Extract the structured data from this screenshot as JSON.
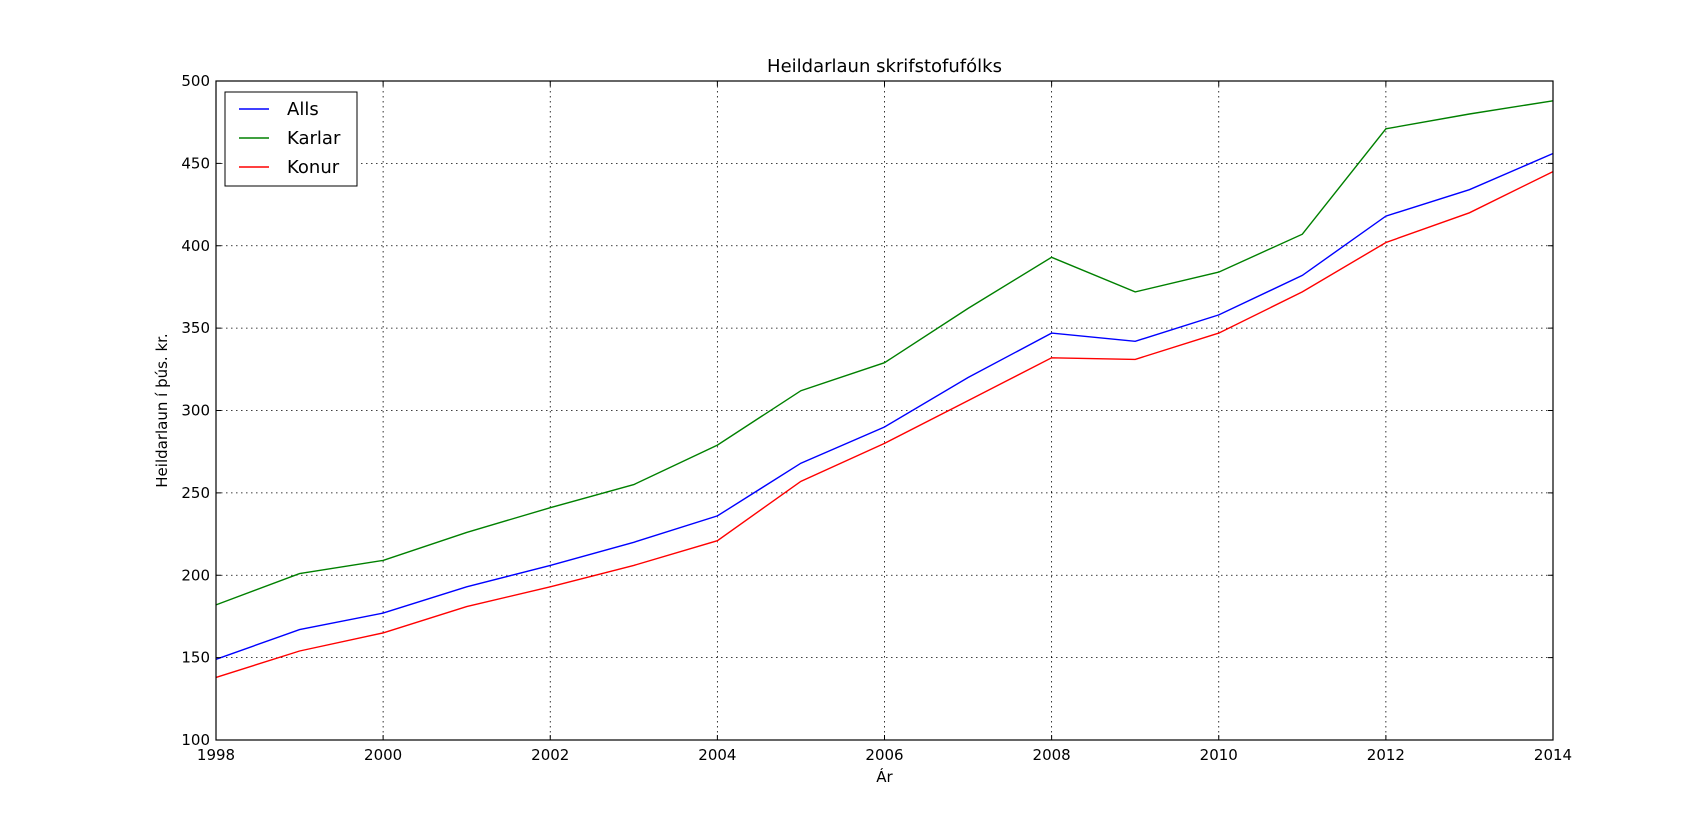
{
  "chart_data": {
    "type": "line",
    "title": "Heildarlaun skrifstofufólks",
    "xlabel": "Ár",
    "ylabel": "Heildarlaun í þús. kr.",
    "xlim": [
      1998,
      2014
    ],
    "ylim": [
      100,
      500
    ],
    "x_ticks": [
      "1998",
      "2000",
      "2002",
      "2004",
      "2006",
      "2008",
      "2010",
      "2012",
      "2014"
    ],
    "y_ticks": [
      "100",
      "150",
      "200",
      "250",
      "300",
      "350",
      "400",
      "450",
      "500"
    ],
    "grid": true,
    "legend_position": "top-left",
    "x": [
      1998,
      1999,
      2000,
      2001,
      2002,
      2003,
      2004,
      2005,
      2006,
      2007,
      2008,
      2009,
      2010,
      2011,
      2012,
      2013,
      2014
    ],
    "series": [
      {
        "name": "Alls",
        "color": "#0000ff",
        "values": [
          149,
          167,
          177,
          193,
          206,
          220,
          236,
          268,
          290,
          320,
          347,
          342,
          358,
          382,
          418,
          434,
          456
        ]
      },
      {
        "name": "Karlar",
        "color": "#008000",
        "values": [
          182,
          201,
          209,
          226,
          241,
          255,
          279,
          312,
          329,
          362,
          393,
          372,
          384,
          407,
          471,
          480,
          488
        ]
      },
      {
        "name": "Konur",
        "color": "#ff0000",
        "values": [
          138,
          154,
          165,
          181,
          193,
          206,
          221,
          257,
          280,
          306,
          332,
          331,
          347,
          372,
          402,
          420,
          445
        ]
      }
    ]
  }
}
